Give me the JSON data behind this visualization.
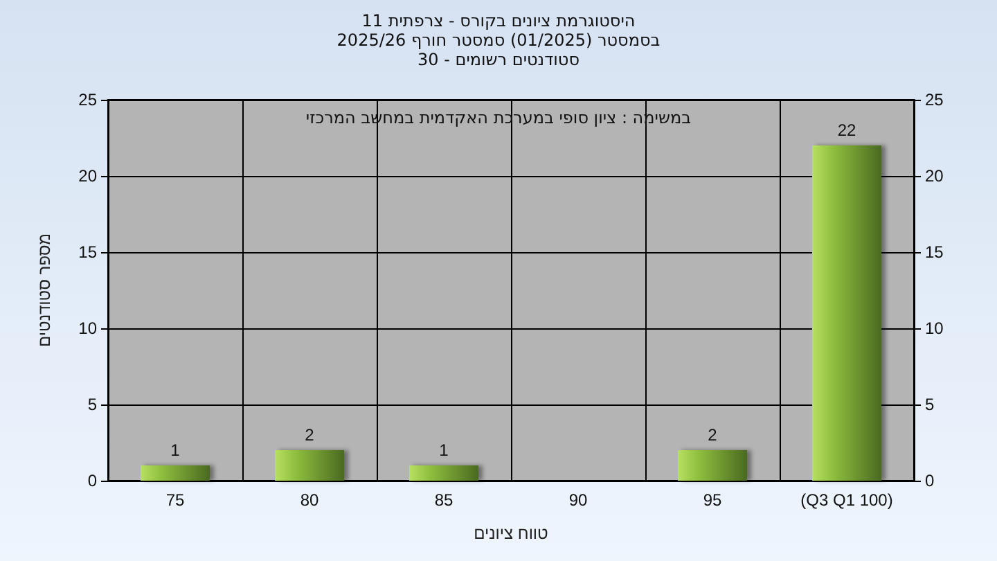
{
  "chart_data": {
    "type": "bar",
    "title": "היסטוגרמת ציונים בקורס - צרפתית 11\nבסמסטר  (01/2025)  סמסטר חורף 2025/26",
    "subtitle": "סטודנטים רשומים - 30",
    "xlabel": "טווח ציונים",
    "ylabel": "מספר סטודנטים",
    "annotations": [
      "במשימה : ציון סופי במערכת האקדמית במחשב המרכזי"
    ],
    "categories": [
      "75",
      "80",
      "85",
      "90",
      "95",
      "(Q3 Q1 100)"
    ],
    "values": [
      1,
      2,
      1,
      0,
      2,
      22
    ],
    "value_labels": [
      "1",
      "2",
      "1",
      null,
      "2",
      "22"
    ],
    "color": "#8fbf3f",
    "ylim": [
      0,
      25
    ],
    "yticks": [
      0,
      5,
      10,
      15,
      20,
      25
    ],
    "y2lim": [
      0,
      25
    ],
    "y2ticks": [
      0,
      5,
      10,
      15,
      20,
      25
    ],
    "grid": true
  }
}
